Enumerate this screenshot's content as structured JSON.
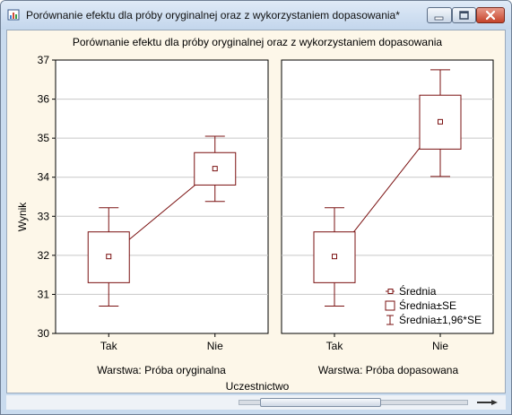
{
  "window": {
    "title": "Porównanie efektu dla próby oryginalnej oraz z wykorzystaniem dopasowania*"
  },
  "colors": {
    "marks": "#7a1010",
    "grid": "#c8c8c8",
    "panel_bg": "#ffffff",
    "canvas_bg": "#fdf7e9",
    "titlebar": "#c9dbee"
  },
  "icons": [
    "app-chart-icon",
    "minimize-icon",
    "maximize-icon",
    "close-icon",
    "zoom-icon"
  ],
  "chart_data": {
    "type": "scatter",
    "title": "Porównanie efektu dla próby oryginalnej oraz z wykorzystaniem dopasowania",
    "xlabel": "Uczestnictwo",
    "ylabel": "Wynik",
    "ylim": [
      30,
      37
    ],
    "yticks": [
      "30",
      "31",
      "32",
      "33",
      "34",
      "35",
      "36",
      "37"
    ],
    "categories": [
      "Tak",
      "Nie"
    ],
    "grid": "horizontal",
    "legend_position": "bottom-right",
    "legend": [
      "Średnia",
      "Średnia±SE",
      "Średnia±1,96*SE"
    ],
    "panels": [
      {
        "label": "Warstwa: Próba oryginalna",
        "points": [
          {
            "x": "Tak",
            "mean": 31.97,
            "se_low": 31.3,
            "se_high": 32.6,
            "ci_low": 30.7,
            "ci_high": 33.22
          },
          {
            "x": "Nie",
            "mean": 34.22,
            "se_low": 33.8,
            "se_high": 34.63,
            "ci_low": 33.38,
            "ci_high": 35.05
          }
        ]
      },
      {
        "label": "Warstwa: Próba dopasowana",
        "points": [
          {
            "x": "Tak",
            "mean": 31.97,
            "se_low": 31.3,
            "se_high": 32.6,
            "ci_low": 30.7,
            "ci_high": 33.22
          },
          {
            "x": "Nie",
            "mean": 35.42,
            "se_low": 34.72,
            "se_high": 36.1,
            "ci_low": 34.02,
            "ci_high": 36.75
          }
        ]
      }
    ]
  }
}
